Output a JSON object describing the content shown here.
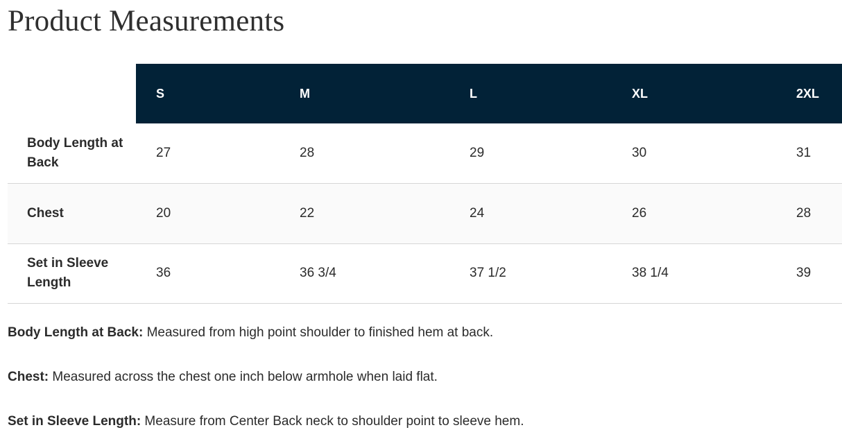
{
  "title": "Product Measurements",
  "colors": {
    "header_bg": "#022237",
    "alt_row_bg": "#fafafa"
  },
  "sizes": [
    "S",
    "M",
    "L",
    "XL",
    "2XL"
  ],
  "rows": [
    {
      "label": "Body Length at Back",
      "values": [
        "27",
        "28",
        "29",
        "30",
        "31"
      ]
    },
    {
      "label": "Chest",
      "values": [
        "20",
        "22",
        "24",
        "26",
        "28"
      ]
    },
    {
      "label": "Set in Sleeve Length",
      "values": [
        "36",
        "36 3/4",
        "37 1/2",
        "38 1/4",
        "39"
      ]
    }
  ],
  "notes": [
    {
      "term": "Body Length at Back:",
      "text": " Measured from high point shoulder to finished hem at back."
    },
    {
      "term": "Chest:",
      "text": " Measured across the chest one inch below armhole when laid flat."
    },
    {
      "term": "Set in Sleeve Length:",
      "text": " Measure from Center Back neck to shoulder point to sleeve hem."
    }
  ]
}
